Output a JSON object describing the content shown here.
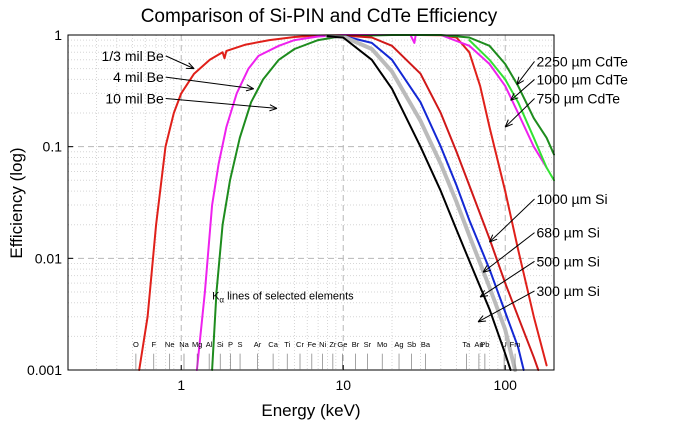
{
  "chart_data": {
    "type": "line",
    "title": "Comparison of Si-PIN and CdTe Efficiency",
    "xlabel": "Energy (keV)",
    "ylabel": "Efficiency (log)",
    "x_scale": "log",
    "y_scale": "log",
    "xlim": [
      0.2,
      200
    ],
    "ylim": [
      0.001,
      1
    ],
    "grid": true,
    "x_ticks": [
      {
        "value": 1,
        "label": "1"
      },
      {
        "value": 10,
        "label": "10"
      },
      {
        "value": 100,
        "label": "100"
      }
    ],
    "y_ticks": [
      {
        "value": 0.001,
        "label": "0.001"
      },
      {
        "value": 0.01,
        "label": "0.01"
      },
      {
        "value": 0.1,
        "label": "0.1"
      },
      {
        "value": 1,
        "label": "1"
      }
    ],
    "series": [
      {
        "name": "1/3 mil Be",
        "color": "#e0201a",
        "points": [
          [
            0.55,
            0.001
          ],
          [
            0.62,
            0.003
          ],
          [
            0.7,
            0.02
          ],
          [
            0.8,
            0.1
          ],
          [
            0.9,
            0.2
          ],
          [
            1.0,
            0.3
          ],
          [
            1.2,
            0.45
          ],
          [
            1.5,
            0.6
          ],
          [
            1.8,
            0.7
          ],
          [
            1.85,
            0.62
          ],
          [
            1.9,
            0.72
          ],
          [
            2.5,
            0.82
          ],
          [
            3.5,
            0.9
          ],
          [
            5,
            0.96
          ],
          [
            7,
            0.99
          ],
          [
            10,
            1.0
          ],
          [
            20,
            1.0
          ],
          [
            30,
            1.0
          ],
          [
            40,
            0.995
          ],
          [
            50,
            0.95
          ],
          [
            60,
            0.7
          ],
          [
            70,
            0.35
          ],
          [
            80,
            0.15
          ],
          [
            100,
            0.04
          ],
          [
            120,
            0.012
          ],
          [
            150,
            0.003
          ],
          [
            180,
            0.0011
          ]
        ]
      },
      {
        "name": "4 mil Be",
        "color": "#ee22ee",
        "points": [
          [
            1.25,
            0.001
          ],
          [
            1.4,
            0.005
          ],
          [
            1.55,
            0.03
          ],
          [
            1.7,
            0.07
          ],
          [
            1.9,
            0.15
          ],
          [
            2.2,
            0.3
          ],
          [
            2.6,
            0.5
          ],
          [
            3.0,
            0.65
          ],
          [
            4,
            0.8
          ],
          [
            5,
            0.9
          ],
          [
            7,
            0.97
          ],
          [
            10,
            1.0
          ],
          [
            20,
            1.0
          ],
          [
            26,
            1.0
          ],
          [
            27.5,
            0.85
          ],
          [
            28,
            1.0
          ],
          [
            40,
            1.0
          ],
          [
            60,
            0.8
          ],
          [
            80,
            0.55
          ],
          [
            100,
            0.35
          ],
          [
            120,
            0.2
          ],
          [
            150,
            0.1
          ],
          [
            180,
            0.065
          ]
        ]
      },
      {
        "name": "10 mil Be",
        "color": "#1e8c1e",
        "points": [
          [
            1.55,
            0.001
          ],
          [
            1.65,
            0.005
          ],
          [
            1.8,
            0.02
          ],
          [
            2.0,
            0.05
          ],
          [
            2.3,
            0.12
          ],
          [
            2.7,
            0.25
          ],
          [
            3.2,
            0.4
          ],
          [
            4,
            0.6
          ],
          [
            5,
            0.75
          ],
          [
            7,
            0.9
          ],
          [
            10,
            0.98
          ],
          [
            20,
            1.0
          ],
          [
            40,
            1.0
          ],
          [
            60,
            0.95
          ],
          [
            80,
            0.8
          ],
          [
            100,
            0.55
          ],
          [
            120,
            0.35
          ],
          [
            150,
            0.18
          ],
          [
            180,
            0.12
          ],
          [
            200,
            0.085
          ]
        ]
      },
      {
        "name": "750 µm CdTe",
        "color": "#33e233",
        "points": [
          [
            60,
            0.9
          ],
          [
            80,
            0.6
          ],
          [
            100,
            0.4
          ],
          [
            120,
            0.25
          ],
          [
            150,
            0.12
          ],
          [
            180,
            0.065
          ],
          [
            200,
            0.05
          ]
        ]
      },
      {
        "name": "1000 µm Si",
        "color": "#d01818",
        "points": [
          [
            8,
            0.97
          ],
          [
            10,
            0.99
          ],
          [
            15,
            0.95
          ],
          [
            20,
            0.8
          ],
          [
            30,
            0.45
          ],
          [
            40,
            0.2
          ],
          [
            50,
            0.09
          ],
          [
            60,
            0.045
          ],
          [
            80,
            0.015
          ],
          [
            100,
            0.006
          ],
          [
            120,
            0.003
          ],
          [
            150,
            0.0013
          ],
          [
            160,
            0.001
          ]
        ]
      },
      {
        "name": "680 µm Si",
        "color": "#1428d4",
        "points": [
          [
            8,
            0.98
          ],
          [
            10,
            0.98
          ],
          [
            15,
            0.85
          ],
          [
            20,
            0.6
          ],
          [
            30,
            0.25
          ],
          [
            40,
            0.1
          ],
          [
            50,
            0.045
          ],
          [
            60,
            0.022
          ],
          [
            80,
            0.008
          ],
          [
            100,
            0.0033
          ],
          [
            120,
            0.0016
          ],
          [
            130,
            0.001
          ]
        ]
      },
      {
        "name": "500 µm Si",
        "color": "#bbbbbb",
        "points": [
          [
            8,
            0.98
          ],
          [
            10,
            0.97
          ],
          [
            15,
            0.75
          ],
          [
            20,
            0.47
          ],
          [
            30,
            0.17
          ],
          [
            40,
            0.07
          ],
          [
            50,
            0.032
          ],
          [
            60,
            0.016
          ],
          [
            80,
            0.0055
          ],
          [
            100,
            0.0023
          ],
          [
            115,
            0.001
          ]
        ]
      },
      {
        "name": "300 µm Si",
        "color": "#000000",
        "points": [
          [
            8,
            0.97
          ],
          [
            10,
            0.95
          ],
          [
            15,
            0.6
          ],
          [
            20,
            0.33
          ],
          [
            30,
            0.1
          ],
          [
            40,
            0.04
          ],
          [
            50,
            0.018
          ],
          [
            60,
            0.0095
          ],
          [
            80,
            0.0035
          ],
          [
            100,
            0.0014
          ],
          [
            108,
            0.001
          ]
        ]
      }
    ],
    "annotations": [
      {
        "text": "1/3 mil Be",
        "side": "left",
        "tx": 0.78,
        "ty": 0.65,
        "ax": 1.2,
        "ay": 0.5
      },
      {
        "text": "4 mil Be",
        "side": "left",
        "tx": 0.78,
        "ty": 0.42,
        "ax": 2.8,
        "ay": 0.33
      },
      {
        "text": "10 mil Be",
        "side": "left",
        "tx": 0.78,
        "ty": 0.27,
        "ax": 3.9,
        "ay": 0.22
      },
      {
        "text": "2250 µm CdTe",
        "side": "right",
        "tx": 156,
        "ty": 0.58,
        "ax": 118,
        "ay": 0.36
      },
      {
        "text": "1000 µm CdTe",
        "side": "right",
        "tx": 156,
        "ty": 0.4,
        "ax": 108,
        "ay": 0.26
      },
      {
        "text": "750 µm CdTe",
        "side": "right",
        "tx": 156,
        "ty": 0.27,
        "ax": 100,
        "ay": 0.15
      },
      {
        "text": "1000 µm Si",
        "side": "right",
        "tx": 156,
        "ty": 0.034,
        "ax": 80,
        "ay": 0.014
      },
      {
        "text": "680 µm Si",
        "side": "right",
        "tx": 156,
        "ty": 0.017,
        "ax": 73,
        "ay": 0.0075
      },
      {
        "text": "500 µm Si",
        "side": "right",
        "tx": 156,
        "ty": 0.0094,
        "ax": 70,
        "ay": 0.0045
      },
      {
        "text": "300 µm Si",
        "side": "right",
        "tx": 156,
        "ty": 0.0051,
        "ax": 68,
        "ay": 0.0027
      }
    ],
    "k_alpha_caption": {
      "text": "K",
      "subscript": "α",
      "suffix": " lines of selected elements",
      "x": 1.55,
      "y": 0.0043
    },
    "k_alpha_lines": [
      {
        "el": "O",
        "e": 0.525
      },
      {
        "el": "F",
        "e": 0.677
      },
      {
        "el": "Ne",
        "e": 0.849
      },
      {
        "el": "Na",
        "e": 1.04
      },
      {
        "el": "Mg",
        "e": 1.254
      },
      {
        "el": "Al",
        "e": 1.487
      },
      {
        "el": "Si",
        "e": 1.74
      },
      {
        "el": "P",
        "e": 2.013
      },
      {
        "el": "S",
        "e": 2.307
      },
      {
        "el": "Ar",
        "e": 2.957
      },
      {
        "el": "Ca",
        "e": 3.69
      },
      {
        "el": "Ti",
        "e": 4.51
      },
      {
        "el": "Cr",
        "e": 5.41
      },
      {
        "el": "Fe",
        "e": 6.4
      },
      {
        "el": "Ni",
        "e": 7.47
      },
      {
        "el": "Zr",
        "e": 8.63
      },
      {
        "el": "Ge",
        "e": 9.88
      },
      {
        "el": "Br",
        "e": 11.9
      },
      {
        "el": "Sr",
        "e": 14.1
      },
      {
        "el": "Mo",
        "e": 17.4
      },
      {
        "el": "Ag",
        "e": 22.1
      },
      {
        "el": "Sb",
        "e": 26.4
      },
      {
        "el": "Ba",
        "e": 32.2
      },
      {
        "el": "Ta",
        "e": 57.5
      },
      {
        "el": "Au",
        "e": 68.8
      },
      {
        "el": "Pb",
        "e": 74.9
      },
      {
        "el": "U",
        "e": 98.4
      },
      {
        "el": "Fm",
        "e": 115.0
      }
    ]
  }
}
